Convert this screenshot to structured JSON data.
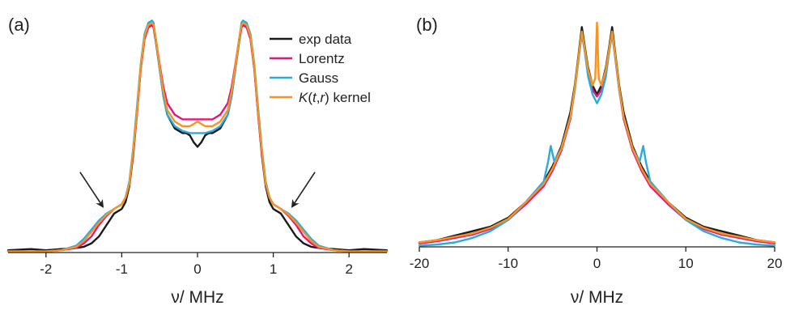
{
  "chart_data": [
    {
      "type": "line",
      "panel_label": "(a)",
      "xlabel": "ν/ MHz",
      "ylabel": "",
      "xlim": [
        -2.5,
        2.5
      ],
      "ylim": [
        0,
        1.05
      ],
      "xticks": [
        -2,
        -1,
        0,
        1,
        2
      ],
      "xtick_labels": [
        "-2",
        "-1",
        "0",
        "1",
        "2"
      ],
      "grid": false,
      "legend_position": "top-right",
      "annotations": [
        "arrow pointing to left shoulder near x=-1.2",
        "arrow pointing to right shoulder near x=1.2"
      ],
      "series": [
        {
          "name": "exp data",
          "color": "#1a1a1a",
          "x": [
            -2.5,
            -2.2,
            -2.0,
            -1.8,
            -1.6,
            -1.5,
            -1.4,
            -1.3,
            -1.2,
            -1.1,
            -1.0,
            -0.95,
            -0.9,
            -0.85,
            -0.8,
            -0.75,
            -0.7,
            -0.65,
            -0.6,
            -0.58,
            -0.55,
            -0.5,
            -0.45,
            -0.4,
            -0.3,
            -0.2,
            -0.15,
            -0.1,
            -0.05,
            0.0,
            0.05,
            0.1,
            0.15,
            0.2,
            0.3,
            0.4,
            0.45,
            0.5,
            0.55,
            0.58,
            0.6,
            0.65,
            0.7,
            0.75,
            0.8,
            0.85,
            0.9,
            0.95,
            1.0,
            1.1,
            1.2,
            1.3,
            1.4,
            1.5,
            1.6,
            1.8,
            2.0,
            2.2,
            2.5
          ],
          "y": [
            0.01,
            0.015,
            0.01,
            0.015,
            0.02,
            0.025,
            0.04,
            0.07,
            0.12,
            0.17,
            0.19,
            0.22,
            0.29,
            0.42,
            0.6,
            0.8,
            0.93,
            0.98,
            0.99,
            0.98,
            0.92,
            0.8,
            0.68,
            0.6,
            0.54,
            0.52,
            0.52,
            0.51,
            0.48,
            0.46,
            0.48,
            0.51,
            0.52,
            0.52,
            0.54,
            0.6,
            0.68,
            0.8,
            0.92,
            0.98,
            0.99,
            0.98,
            0.93,
            0.8,
            0.6,
            0.42,
            0.29,
            0.22,
            0.19,
            0.17,
            0.12,
            0.07,
            0.04,
            0.025,
            0.02,
            0.015,
            0.01,
            0.015,
            0.01
          ]
        },
        {
          "name": "Lorentz",
          "color": "#e0187c",
          "x": [
            -2.5,
            -2.0,
            -1.8,
            -1.6,
            -1.5,
            -1.4,
            -1.3,
            -1.2,
            -1.1,
            -1.0,
            -0.95,
            -0.9,
            -0.85,
            -0.8,
            -0.75,
            -0.7,
            -0.65,
            -0.6,
            -0.58,
            -0.55,
            -0.5,
            -0.45,
            -0.4,
            -0.3,
            -0.2,
            -0.1,
            0.0,
            0.1,
            0.2,
            0.3,
            0.4,
            0.45,
            0.5,
            0.55,
            0.58,
            0.6,
            0.65,
            0.7,
            0.75,
            0.8,
            0.85,
            0.9,
            0.95,
            1.0,
            1.1,
            1.2,
            1.3,
            1.4,
            1.5,
            1.6,
            1.8,
            2.0,
            2.5
          ],
          "y": [
            0.005,
            0.005,
            0.01,
            0.02,
            0.04,
            0.07,
            0.12,
            0.16,
            0.19,
            0.21,
            0.24,
            0.3,
            0.43,
            0.6,
            0.8,
            0.93,
            0.98,
            0.99,
            0.98,
            0.93,
            0.82,
            0.72,
            0.65,
            0.6,
            0.58,
            0.58,
            0.58,
            0.58,
            0.58,
            0.6,
            0.65,
            0.72,
            0.82,
            0.93,
            0.98,
            0.99,
            0.98,
            0.93,
            0.8,
            0.6,
            0.43,
            0.3,
            0.24,
            0.21,
            0.19,
            0.16,
            0.12,
            0.07,
            0.04,
            0.02,
            0.01,
            0.005,
            0.005
          ]
        },
        {
          "name": "Gauss",
          "color": "#29abe2",
          "x": [
            -2.5,
            -2.0,
            -1.8,
            -1.6,
            -1.5,
            -1.4,
            -1.3,
            -1.2,
            -1.1,
            -1.0,
            -0.95,
            -0.9,
            -0.85,
            -0.8,
            -0.75,
            -0.7,
            -0.65,
            -0.6,
            -0.58,
            -0.55,
            -0.5,
            -0.45,
            -0.4,
            -0.3,
            -0.2,
            -0.1,
            0.0,
            0.1,
            0.2,
            0.3,
            0.4,
            0.45,
            0.5,
            0.55,
            0.58,
            0.6,
            0.65,
            0.7,
            0.75,
            0.8,
            0.85,
            0.9,
            0.95,
            1.0,
            1.1,
            1.2,
            1.3,
            1.4,
            1.5,
            1.6,
            1.8,
            2.0,
            2.5
          ],
          "y": [
            0.005,
            0.005,
            0.01,
            0.03,
            0.06,
            0.1,
            0.14,
            0.17,
            0.19,
            0.21,
            0.24,
            0.31,
            0.45,
            0.63,
            0.82,
            0.95,
            1.0,
            1.01,
            1.0,
            0.93,
            0.8,
            0.68,
            0.6,
            0.55,
            0.53,
            0.52,
            0.52,
            0.52,
            0.53,
            0.55,
            0.6,
            0.68,
            0.8,
            0.93,
            1.0,
            1.01,
            1.0,
            0.95,
            0.82,
            0.63,
            0.45,
            0.31,
            0.24,
            0.21,
            0.19,
            0.17,
            0.14,
            0.1,
            0.06,
            0.03,
            0.01,
            0.005,
            0.005
          ]
        },
        {
          "name": "K(t,r) kernel",
          "color": "#f7931e",
          "x": [
            -2.5,
            -2.0,
            -1.8,
            -1.6,
            -1.5,
            -1.4,
            -1.3,
            -1.2,
            -1.1,
            -1.0,
            -0.95,
            -0.9,
            -0.85,
            -0.8,
            -0.75,
            -0.7,
            -0.65,
            -0.6,
            -0.58,
            -0.55,
            -0.5,
            -0.45,
            -0.4,
            -0.3,
            -0.2,
            -0.1,
            -0.05,
            0.0,
            0.05,
            0.1,
            0.2,
            0.3,
            0.4,
            0.45,
            0.5,
            0.55,
            0.58,
            0.6,
            0.65,
            0.7,
            0.75,
            0.8,
            0.85,
            0.9,
            0.95,
            1.0,
            1.1,
            1.2,
            1.3,
            1.4,
            1.5,
            1.6,
            1.8,
            2.0,
            2.5
          ],
          "y": [
            0.005,
            0.005,
            0.01,
            0.025,
            0.05,
            0.09,
            0.13,
            0.165,
            0.19,
            0.21,
            0.24,
            0.3,
            0.44,
            0.61,
            0.81,
            0.94,
            0.99,
            1.0,
            0.99,
            0.93,
            0.81,
            0.7,
            0.62,
            0.57,
            0.55,
            0.55,
            0.56,
            0.57,
            0.56,
            0.55,
            0.55,
            0.57,
            0.62,
            0.7,
            0.81,
            0.93,
            0.99,
            1.0,
            0.99,
            0.94,
            0.81,
            0.61,
            0.44,
            0.3,
            0.24,
            0.21,
            0.19,
            0.165,
            0.13,
            0.09,
            0.05,
            0.025,
            0.01,
            0.005,
            0.005
          ]
        }
      ]
    },
    {
      "type": "line",
      "panel_label": "(b)",
      "xlabel": "ν/ MHz",
      "ylabel": "",
      "xlim": [
        -20,
        20
      ],
      "ylim": [
        0,
        1.05
      ],
      "xticks": [
        -20,
        -10,
        0,
        10,
        20
      ],
      "xtick_labels": [
        "-20",
        "-10",
        "0",
        "10",
        "20"
      ],
      "grid": false,
      "series": [
        {
          "name": "exp data",
          "color": "#1a1a1a",
          "x": [
            -20,
            -18,
            -16,
            -14,
            -12,
            -10,
            -8,
            -6,
            -5,
            -4,
            -3,
            -2.5,
            -2,
            -1.7,
            -1.4,
            -1,
            -0.5,
            0,
            0.5,
            1,
            1.4,
            1.7,
            2,
            2.5,
            3,
            4,
            5,
            6,
            8,
            10,
            12,
            14,
            16,
            18,
            20
          ],
          "y": [
            0.02,
            0.03,
            0.05,
            0.07,
            0.09,
            0.13,
            0.2,
            0.29,
            0.36,
            0.45,
            0.6,
            0.72,
            0.88,
            0.98,
            0.9,
            0.8,
            0.72,
            0.68,
            0.72,
            0.8,
            0.9,
            0.98,
            0.88,
            0.72,
            0.6,
            0.45,
            0.36,
            0.29,
            0.2,
            0.13,
            0.09,
            0.07,
            0.05,
            0.03,
            0.02
          ]
        },
        {
          "name": "Lorentz",
          "color": "#e0187c",
          "x": [
            -20,
            -18,
            -16,
            -14,
            -12,
            -10,
            -8,
            -6,
            -5,
            -4,
            -3,
            -2.5,
            -2,
            -1.7,
            -1.4,
            -1,
            -0.5,
            0,
            0.5,
            1,
            1.4,
            1.7,
            2,
            2.5,
            3,
            4,
            5,
            6,
            8,
            10,
            12,
            14,
            16,
            18,
            20
          ],
          "y": [
            0.015,
            0.025,
            0.04,
            0.055,
            0.08,
            0.12,
            0.19,
            0.27,
            0.34,
            0.43,
            0.57,
            0.7,
            0.86,
            0.95,
            0.88,
            0.78,
            0.7,
            0.67,
            0.7,
            0.78,
            0.88,
            0.95,
            0.86,
            0.7,
            0.57,
            0.43,
            0.34,
            0.27,
            0.19,
            0.12,
            0.08,
            0.055,
            0.04,
            0.025,
            0.015
          ]
        },
        {
          "name": "Gauss",
          "color": "#29abe2",
          "x": [
            -20,
            -18,
            -16,
            -14,
            -12,
            -10,
            -8,
            -6,
            -5.5,
            -5.2,
            -4.8,
            -4,
            -3,
            -2.5,
            -2,
            -1.7,
            -1.4,
            -1,
            -0.5,
            0,
            0.5,
            1,
            1.4,
            1.7,
            2,
            2.5,
            3,
            4,
            4.8,
            5.2,
            5.5,
            6,
            8,
            10,
            12,
            14,
            16,
            18,
            20
          ],
          "y": [
            0.005,
            0.01,
            0.02,
            0.04,
            0.07,
            0.12,
            0.2,
            0.29,
            0.38,
            0.45,
            0.38,
            0.44,
            0.58,
            0.7,
            0.86,
            0.95,
            0.88,
            0.76,
            0.68,
            0.64,
            0.68,
            0.76,
            0.88,
            0.95,
            0.86,
            0.7,
            0.58,
            0.44,
            0.38,
            0.45,
            0.38,
            0.29,
            0.2,
            0.12,
            0.07,
            0.04,
            0.02,
            0.01,
            0.005
          ]
        },
        {
          "name": "K(t,r) kernel",
          "color": "#f7931e",
          "x": [
            -20,
            -18,
            -16,
            -14,
            -12,
            -10,
            -8,
            -6,
            -5,
            -4,
            -3,
            -2.5,
            -2,
            -1.7,
            -1.4,
            -1,
            -0.5,
            -0.2,
            -0.1,
            0,
            0.1,
            0.2,
            0.5,
            1,
            1.4,
            1.7,
            2,
            2.5,
            3,
            4,
            5,
            6,
            8,
            10,
            12,
            14,
            16,
            18,
            20
          ],
          "y": [
            0.02,
            0.03,
            0.045,
            0.06,
            0.085,
            0.125,
            0.2,
            0.28,
            0.35,
            0.44,
            0.58,
            0.71,
            0.87,
            0.96,
            0.89,
            0.79,
            0.72,
            0.75,
            0.88,
            1.0,
            0.88,
            0.75,
            0.72,
            0.79,
            0.89,
            0.96,
            0.87,
            0.71,
            0.58,
            0.44,
            0.35,
            0.28,
            0.2,
            0.125,
            0.085,
            0.06,
            0.045,
            0.03,
            0.02
          ]
        }
      ]
    }
  ]
}
